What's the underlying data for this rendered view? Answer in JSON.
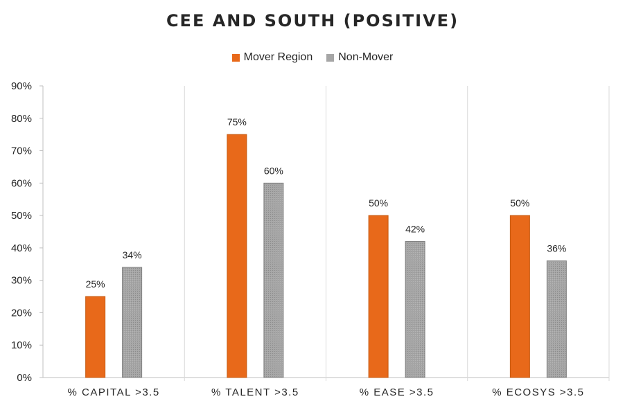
{
  "chart_data": {
    "type": "bar",
    "title": "CEE AND SOUTH (POSITIVE)",
    "categories": [
      "% CAPITAL >3.5",
      "% TALENT >3.5",
      "% EASE >3.5",
      "% ECOSYS >3.5"
    ],
    "series": [
      {
        "name": "Mover Region",
        "values": [
          25,
          75,
          50,
          50
        ],
        "labels": [
          "25%",
          "75%",
          "50%",
          "50%"
        ],
        "color": "#E8691A"
      },
      {
        "name": "Non-Mover",
        "values": [
          34,
          60,
          42,
          36
        ],
        "labels": [
          "34%",
          "60%",
          "42%",
          "36%"
        ],
        "color": "#A6A6A6"
      }
    ],
    "y_ticks": [
      "0%",
      "10%",
      "20%",
      "30%",
      "40%",
      "50%",
      "60%",
      "70%",
      "80%",
      "90%"
    ],
    "ylim": [
      0,
      90
    ],
    "legend_position": "top-center",
    "grid": false,
    "category_separators": true
  }
}
